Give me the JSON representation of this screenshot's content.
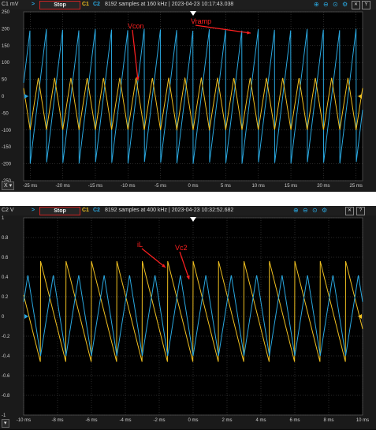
{
  "colors": {
    "ch1": "#f0c020",
    "ch2": "#2aa8e0",
    "annotation": "#ff2020",
    "grid": "#555555",
    "background": "#1a1a1a"
  },
  "scope1": {
    "unit_label": "C1 mV",
    "run_button": "Stop",
    "channels": [
      "C1",
      "C2"
    ],
    "status": "8192 samples at 160 kHz | 2023-04-23 10:17:43.038",
    "icons": [
      "zoom-in-icon",
      "zoom-out-icon",
      "zoom-fit-icon",
      "settings-icon",
      "close-icon",
      "y-axis-icon"
    ],
    "y_button": "Y",
    "x_button": "X",
    "annotations": {
      "vcon": "Vcon",
      "vramp": "Vramp"
    },
    "chart_data": {
      "type": "line",
      "xlabel": "",
      "ylabel": "",
      "x_unit": "ms",
      "xlim": [
        -26,
        26
      ],
      "ylim": [
        -250,
        250
      ],
      "yticks": [
        250,
        200,
        150,
        100,
        50,
        0,
        -50,
        -100,
        -150,
        -200,
        -250
      ],
      "xticks": [
        "-25 ms",
        "-20 ms",
        "-15 ms",
        "-10 ms",
        "-5 ms",
        "0 ms",
        "5 ms",
        "10 ms",
        "15 ms",
        "20 ms",
        "25 ms"
      ],
      "xtick_values": [
        -25,
        -20,
        -15,
        -10,
        -5,
        0,
        5,
        10,
        15,
        20,
        25
      ],
      "grid": true,
      "series": [
        {
          "channel": "C2",
          "shape": "sawtooth",
          "period_ms": 2.5,
          "min": -200,
          "max": 200
        },
        {
          "channel": "C1",
          "shape": "triangle",
          "period_ms": 2.5,
          "min": -100,
          "max": 55
        }
      ]
    }
  },
  "scope2": {
    "unit_label": "C2 V",
    "run_button": "Stop",
    "channels": [
      "C1",
      "C2"
    ],
    "status": "8192 samples at 400 kHz | 2023-04-23 10:32:52.682",
    "icons": [
      "zoom-in-icon",
      "zoom-out-icon",
      "zoom-fit-icon",
      "settings-icon",
      "close-icon",
      "help-icon"
    ],
    "x_button": "",
    "annotations": {
      "il": "iL",
      "vc2": "Vc2"
    },
    "chart_data": {
      "type": "line",
      "xlabel": "",
      "ylabel": "",
      "x_unit": "ms",
      "xlim": [
        -10,
        10
      ],
      "ylim": [
        -1,
        1
      ],
      "yticks": [
        1,
        0.8,
        0.6,
        0.4,
        0.2,
        0,
        -0.2,
        -0.4,
        -0.6,
        -0.8,
        -1
      ],
      "xticks": [
        "-10 ms",
        "-8 ms",
        "-6 ms",
        "-4 ms",
        "-2 ms",
        "0 ms",
        "2 ms",
        "4 ms",
        "6 ms",
        "8 ms",
        "10 ms"
      ],
      "xtick_values": [
        -10,
        -8,
        -6,
        -4,
        -2,
        0,
        2,
        4,
        6,
        8,
        10
      ],
      "grid": true,
      "series": [
        {
          "channel": "C1",
          "shape": "sawtooth_falling",
          "period_ms": 1.5,
          "min": -0.47,
          "max": 0.56
        },
        {
          "channel": "C2",
          "shape": "triangle",
          "period_ms": 1.5,
          "min": -0.4,
          "max": 0.42
        }
      ]
    }
  }
}
